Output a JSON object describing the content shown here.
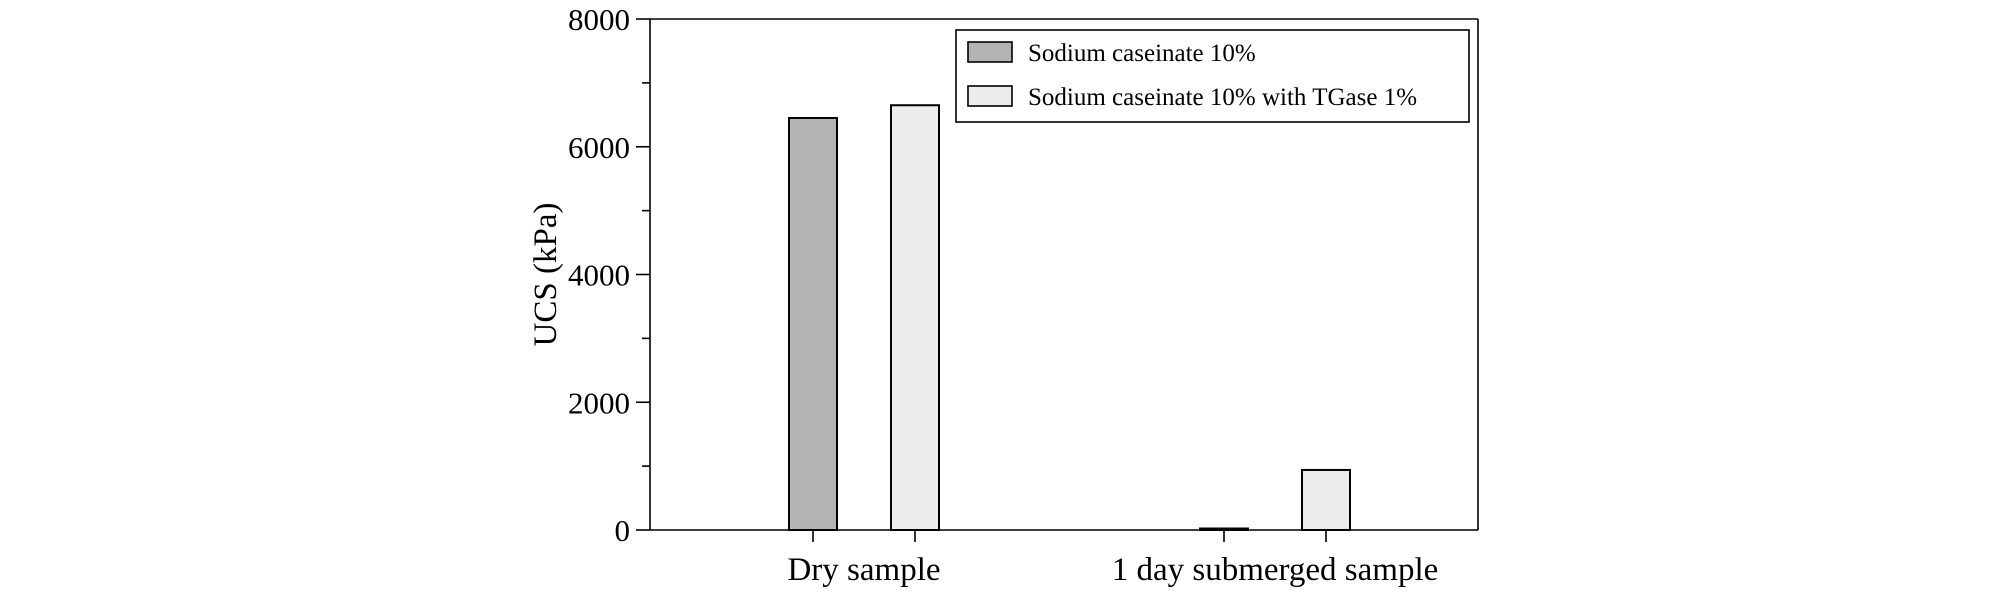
{
  "chart_data": {
    "type": "bar",
    "title": "",
    "xlabel": "",
    "ylabel": "UCS (kPa)",
    "ylim": [
      0,
      8000
    ],
    "yticks": [
      0,
      2000,
      4000,
      6000,
      8000
    ],
    "categories": [
      "Dry sample",
      "1 day submerged sample"
    ],
    "series": [
      {
        "name": "Sodium caseinate 10%",
        "color": "#b3b3b3",
        "values": [
          6450,
          20
        ]
      },
      {
        "name": "Sodium caseinate 10% with TGase 1%",
        "color": "#ececec",
        "values": [
          6650,
          940
        ]
      }
    ],
    "legend_position": "top-right",
    "grid": false
  }
}
